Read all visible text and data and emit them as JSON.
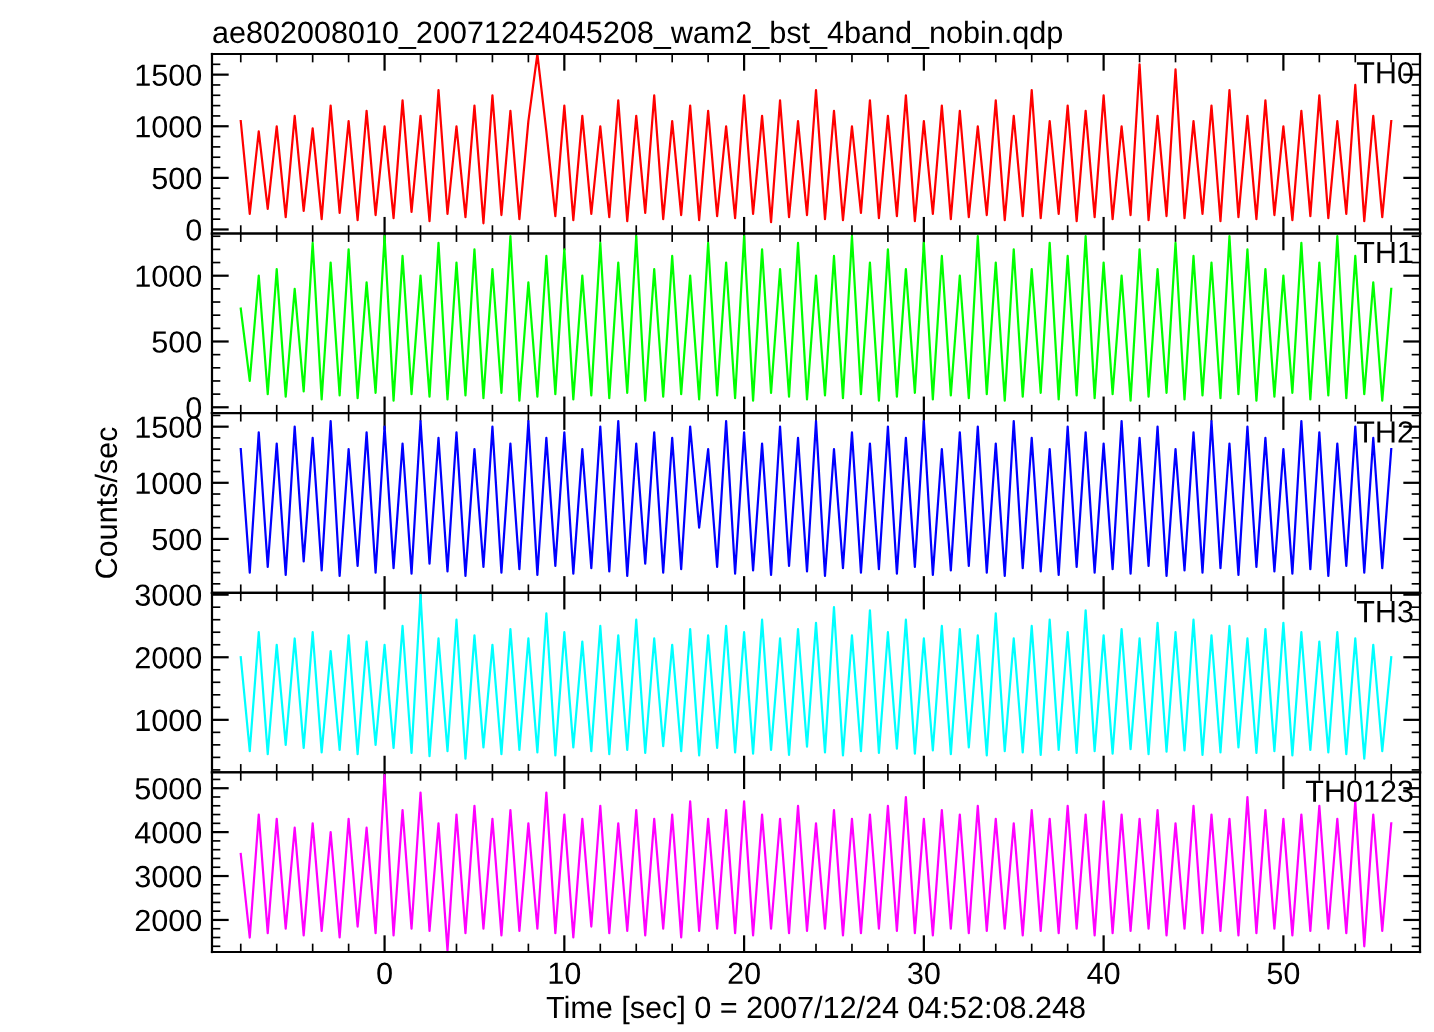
{
  "chart_data": [
    {
      "type": "line",
      "title": "ae802008010_20071224045208_wam2_bst_4band_nobin.qdp",
      "xlim": [
        -9.6,
        57.6
      ],
      "xticks": [
        0,
        10,
        20,
        30,
        40,
        50
      ],
      "ylim": [
        -40,
        1700
      ],
      "yticks": [
        0,
        500,
        1000,
        1500
      ],
      "tick_labels": "y",
      "x": [
        -8,
        -7.5,
        -7,
        -6.5,
        -6,
        -5.5,
        -5,
        -4.5,
        -4,
        -3.5,
        -3,
        -2.5,
        -2,
        -1.5,
        -1,
        -0.5,
        0,
        0.5,
        1,
        1.5,
        2,
        2.5,
        3,
        3.5,
        4,
        4.5,
        5,
        5.5,
        6,
        6.5,
        7,
        7.5,
        8,
        8.5,
        9,
        9.5,
        10,
        10.5,
        11,
        11.5,
        12,
        12.5,
        13,
        13.5,
        14,
        14.5,
        15,
        15.5,
        16,
        16.5,
        17,
        17.5,
        18,
        18.5,
        19,
        19.5,
        20,
        20.5,
        21,
        21.5,
        22,
        22.5,
        23,
        23.5,
        24,
        24.5,
        25,
        25.5,
        26,
        26.5,
        27,
        27.5,
        28,
        28.5,
        29,
        29.5,
        30,
        30.5,
        31,
        31.5,
        32,
        32.5,
        33,
        33.5,
        34,
        34.5,
        35,
        35.5,
        36,
        36.5,
        37,
        37.5,
        38,
        38.5,
        39,
        39.5,
        40,
        40.5,
        41,
        41.5,
        42,
        42.5,
        43,
        43.5,
        44,
        44.5,
        45,
        45.5,
        46,
        46.5,
        47,
        47.5,
        48,
        48.5,
        49,
        49.5,
        50,
        50.5,
        51,
        51.5,
        52,
        52.5,
        53,
        53.5,
        54,
        54.5,
        55,
        55.5,
        56
      ],
      "series": [
        {
          "name": "TH0",
          "color": "#ff0000",
          "values": [
            1050,
            150,
            950,
            200,
            1000,
            120,
            1100,
            180,
            980,
            100,
            1200,
            160,
            1050,
            90,
            1150,
            140,
            1000,
            110,
            1250,
            170,
            1100,
            80,
            1350,
            150,
            1000,
            120,
            1200,
            60,
            1300,
            140,
            1150,
            100,
            1050,
            1700,
            950,
            130,
            1200,
            90,
            1100,
            150,
            1000,
            120,
            1250,
            80,
            1100,
            160,
            1300,
            100,
            1050,
            140,
            1200,
            90,
            1150,
            130,
            1000,
            110,
            1300,
            150,
            1100,
            70,
            1250,
            120,
            1050,
            140,
            1350,
            100,
            1150,
            90,
            1000,
            160,
            1250,
            110,
            1100,
            130,
            1300,
            80,
            1050,
            150,
            1200,
            100,
            1150,
            120,
            1000,
            140,
            1250,
            90,
            1100,
            130,
            1350,
            110,
            1050,
            150,
            1200,
            80,
            1150,
            120,
            1300,
            100,
            1000,
            140,
            1600,
            90,
            1100,
            130,
            1550,
            110,
            1050,
            150,
            1200,
            80,
            1350,
            120,
            1100,
            100,
            1250,
            140,
            1000,
            90,
            1150,
            130,
            1300,
            110,
            1050,
            150,
            1400,
            80,
            1100,
            120,
            1050
          ]
        }
      ]
    },
    {
      "type": "line",
      "xlim": [
        -9.6,
        57.6
      ],
      "xticks": [
        0,
        10,
        20,
        30,
        40,
        50
      ],
      "ylim": [
        -45,
        1320
      ],
      "yticks": [
        0,
        500,
        1000
      ],
      "tick_labels": "y",
      "x": [
        -8,
        -7.5,
        -7,
        -6.5,
        -6,
        -5.5,
        -5,
        -4.5,
        -4,
        -3.5,
        -3,
        -2.5,
        -2,
        -1.5,
        -1,
        -0.5,
        0,
        0.5,
        1,
        1.5,
        2,
        2.5,
        3,
        3.5,
        4,
        4.5,
        5,
        5.5,
        6,
        6.5,
        7,
        7.5,
        8,
        8.5,
        9,
        9.5,
        10,
        10.5,
        11,
        11.5,
        12,
        12.5,
        13,
        13.5,
        14,
        14.5,
        15,
        15.5,
        16,
        16.5,
        17,
        17.5,
        18,
        18.5,
        19,
        19.5,
        20,
        20.5,
        21,
        21.5,
        22,
        22.5,
        23,
        23.5,
        24,
        24.5,
        25,
        25.5,
        26,
        26.5,
        27,
        27.5,
        28,
        28.5,
        29,
        29.5,
        30,
        30.5,
        31,
        31.5,
        32,
        32.5,
        33,
        33.5,
        34,
        34.5,
        35,
        35.5,
        36,
        36.5,
        37,
        37.5,
        38,
        38.5,
        39,
        39.5,
        40,
        40.5,
        41,
        41.5,
        42,
        42.5,
        43,
        43.5,
        44,
        44.5,
        45,
        45.5,
        46,
        46.5,
        47,
        47.5,
        48,
        48.5,
        49,
        49.5,
        50,
        50.5,
        51,
        51.5,
        52,
        52.5,
        53,
        53.5,
        54,
        54.5,
        55,
        55.5,
        56
      ],
      "series": [
        {
          "name": "TH1",
          "color": "#00ff00",
          "values": [
            750,
            200,
            1000,
            100,
            1050,
            80,
            900,
            120,
            1250,
            60,
            1100,
            90,
            1200,
            70,
            950,
            110,
            1300,
            50,
            1150,
            100,
            1000,
            80,
            1250,
            60,
            1100,
            90,
            1200,
            70,
            1050,
            110,
            1300,
            50,
            950,
            80,
            1150,
            100,
            1200,
            60,
            1000,
            90,
            1250,
            70,
            1100,
            110,
            1300,
            50,
            1050,
            80,
            1150,
            100,
            1000,
            60,
            1250,
            90,
            1100,
            70,
            1300,
            50,
            1200,
            110,
            1050,
            80,
            1250,
            60,
            1000,
            90,
            1150,
            70,
            1300,
            100,
            1100,
            50,
            1200,
            80,
            1050,
            110,
            1250,
            60,
            1150,
            90,
            1000,
            70,
            1300,
            100,
            1100,
            50,
            1200,
            80,
            1050,
            110,
            1250,
            60,
            1150,
            90,
            1300,
            70,
            1100,
            100,
            1000,
            50,
            1200,
            80,
            1050,
            110,
            1250,
            60,
            1150,
            90,
            1100,
            70,
            1300,
            100,
            1200,
            50,
            1050,
            80,
            1000,
            110,
            1250,
            60,
            1100,
            90,
            1300,
            70,
            1150,
            100,
            950,
            50,
            900
          ]
        }
      ]
    },
    {
      "type": "line",
      "ylabel": "Counts/sec",
      "xlim": [
        -9.6,
        57.6
      ],
      "xticks": [
        0,
        10,
        20,
        30,
        40,
        50
      ],
      "ylim": [
        20,
        1620
      ],
      "yticks": [
        500,
        1000,
        1500
      ],
      "tick_labels": "y",
      "x": [
        -8,
        -7.5,
        -7,
        -6.5,
        -6,
        -5.5,
        -5,
        -4.5,
        -4,
        -3.5,
        -3,
        -2.5,
        -2,
        -1.5,
        -1,
        -0.5,
        0,
        0.5,
        1,
        1.5,
        2,
        2.5,
        3,
        3.5,
        4,
        4.5,
        5,
        5.5,
        6,
        6.5,
        7,
        7.5,
        8,
        8.5,
        9,
        9.5,
        10,
        10.5,
        11,
        11.5,
        12,
        12.5,
        13,
        13.5,
        14,
        14.5,
        15,
        15.5,
        16,
        16.5,
        17,
        17.5,
        18,
        18.5,
        19,
        19.5,
        20,
        20.5,
        21,
        21.5,
        22,
        22.5,
        23,
        23.5,
        24,
        24.5,
        25,
        25.5,
        26,
        26.5,
        27,
        27.5,
        28,
        28.5,
        29,
        29.5,
        30,
        30.5,
        31,
        31.5,
        32,
        32.5,
        33,
        33.5,
        34,
        34.5,
        35,
        35.5,
        36,
        36.5,
        37,
        37.5,
        38,
        38.5,
        39,
        39.5,
        40,
        40.5,
        41,
        41.5,
        42,
        42.5,
        43,
        43.5,
        44,
        44.5,
        45,
        45.5,
        46,
        46.5,
        47,
        47.5,
        48,
        48.5,
        49,
        49.5,
        50,
        50.5,
        51,
        51.5,
        52,
        52.5,
        53,
        53.5,
        54,
        54.5,
        55,
        55.5,
        56
      ],
      "series": [
        {
          "name": "TH2",
          "color": "#0000ff",
          "values": [
            1300,
            200,
            1450,
            250,
            1350,
            180,
            1500,
            300,
            1400,
            220,
            1550,
            170,
            1300,
            260,
            1450,
            200,
            1500,
            240,
            1350,
            190,
            1550,
            280,
            1400,
            210,
            1450,
            170,
            1300,
            250,
            1500,
            200,
            1350,
            230,
            1550,
            180,
            1400,
            260,
            1450,
            190,
            1300,
            240,
            1500,
            210,
            1550,
            170,
            1350,
            280,
            1450,
            200,
            1400,
            230,
            1500,
            600,
            1300,
            250,
            1550,
            190,
            1450,
            220,
            1350,
            180,
            1500,
            260,
            1400,
            210,
            1550,
            170,
            1300,
            240,
            1450,
            200,
            1350,
            230,
            1500,
            190,
            1400,
            250,
            1550,
            180,
            1300,
            220,
            1450,
            260,
            1500,
            200,
            1350,
            170,
            1550,
            240,
            1400,
            210,
            1300,
            180,
            1500,
            250,
            1450,
            200,
            1350,
            230,
            1550,
            190,
            1400,
            260,
            1500,
            170,
            1300,
            220,
            1450,
            200,
            1550,
            240,
            1350,
            180,
            1500,
            250,
            1400,
            210,
            1300,
            190,
            1550,
            230,
            1450,
            170,
            1350,
            260,
            1500,
            200,
            1400,
            240,
            1300
          ]
        }
      ]
    },
    {
      "type": "line",
      "xlim": [
        -9.6,
        57.6
      ],
      "xticks": [
        0,
        10,
        20,
        30,
        40,
        50
      ],
      "ylim": [
        160,
        3030
      ],
      "yticks": [
        1000,
        2000,
        3000
      ],
      "tick_labels": "y",
      "x": [
        -8,
        -7.5,
        -7,
        -6.5,
        -6,
        -5.5,
        -5,
        -4.5,
        -4,
        -3.5,
        -3,
        -2.5,
        -2,
        -1.5,
        -1,
        -0.5,
        0,
        0.5,
        1,
        1.5,
        2,
        2.5,
        3,
        3.5,
        4,
        4.5,
        5,
        5.5,
        6,
        6.5,
        7,
        7.5,
        8,
        8.5,
        9,
        9.5,
        10,
        10.5,
        11,
        11.5,
        12,
        12.5,
        13,
        13.5,
        14,
        14.5,
        15,
        15.5,
        16,
        16.5,
        17,
        17.5,
        18,
        18.5,
        19,
        19.5,
        20,
        20.5,
        21,
        21.5,
        22,
        22.5,
        23,
        23.5,
        24,
        24.5,
        25,
        25.5,
        26,
        26.5,
        27,
        27.5,
        28,
        28.5,
        29,
        29.5,
        30,
        30.5,
        31,
        31.5,
        32,
        32.5,
        33,
        33.5,
        34,
        34.5,
        35,
        35.5,
        36,
        36.5,
        37,
        37.5,
        38,
        38.5,
        39,
        39.5,
        40,
        40.5,
        41,
        41.5,
        42,
        42.5,
        43,
        43.5,
        44,
        44.5,
        45,
        45.5,
        46,
        46.5,
        47,
        47.5,
        48,
        48.5,
        49,
        49.5,
        50,
        50.5,
        51,
        51.5,
        52,
        52.5,
        53,
        53.5,
        54,
        54.5,
        55,
        55.5,
        56
      ],
      "series": [
        {
          "name": "TH3",
          "color": "#00ffff",
          "values": [
            2000,
            500,
            2400,
            450,
            2200,
            600,
            2300,
            550,
            2400,
            480,
            2100,
            520,
            2350,
            450,
            2250,
            600,
            2200,
            550,
            2500,
            470,
            3000,
            420,
            2300,
            500,
            2600,
            380,
            2350,
            560,
            2200,
            450,
            2450,
            520,
            2300,
            480,
            2700,
            430,
            2400,
            560,
            2250,
            500,
            2500,
            450,
            2350,
            520,
            2600,
            470,
            2300,
            580,
            2200,
            500,
            2450,
            430,
            2350,
            550,
            2500,
            480,
            2400,
            460,
            2600,
            520,
            2300,
            440,
            2450,
            570,
            2550,
            480,
            2800,
            430,
            2350,
            500,
            2750,
            470,
            2400,
            540,
            2600,
            460,
            2300,
            510,
            2500,
            450,
            2450,
            560,
            2350,
            430,
            2700,
            500,
            2300,
            480,
            2500,
            440,
            2600,
            520,
            2400,
            470,
            2750,
            500,
            2350,
            460,
            2450,
            530,
            2300,
            450,
            2550,
            490,
            2400,
            510,
            2600,
            440,
            2350,
            480,
            2500,
            560,
            2300,
            470,
            2450,
            500,
            2550,
            430,
            2400,
            520,
            2250,
            480,
            2400,
            450,
            2300,
            380,
            2200,
            500,
            2000
          ]
        }
      ]
    },
    {
      "type": "line",
      "xlabel": "Time [sec] 0 = 2007/12/24 04:52:08.248",
      "xlim": [
        -9.6,
        57.6
      ],
      "xticks": [
        0,
        10,
        20,
        30,
        40,
        50
      ],
      "ylim": [
        1270,
        5360
      ],
      "yticks": [
        2000,
        3000,
        4000,
        5000
      ],
      "x": [
        -8,
        -7.5,
        -7,
        -6.5,
        -6,
        -5.5,
        -5,
        -4.5,
        -4,
        -3.5,
        -3,
        -2.5,
        -2,
        -1.5,
        -1,
        -0.5,
        0,
        0.5,
        1,
        1.5,
        2,
        2.5,
        3,
        3.5,
        4,
        4.5,
        5,
        5.5,
        6,
        6.5,
        7,
        7.5,
        8,
        8.5,
        9,
        9.5,
        10,
        10.5,
        11,
        11.5,
        12,
        12.5,
        13,
        13.5,
        14,
        14.5,
        15,
        15.5,
        16,
        16.5,
        17,
        17.5,
        18,
        18.5,
        19,
        19.5,
        20,
        20.5,
        21,
        21.5,
        22,
        22.5,
        23,
        23.5,
        24,
        24.5,
        25,
        25.5,
        26,
        26.5,
        27,
        27.5,
        28,
        28.5,
        29,
        29.5,
        30,
        30.5,
        31,
        31.5,
        32,
        32.5,
        33,
        33.5,
        34,
        34.5,
        35,
        35.5,
        36,
        36.5,
        37,
        37.5,
        38,
        38.5,
        39,
        39.5,
        40,
        40.5,
        41,
        41.5,
        42,
        42.5,
        43,
        43.5,
        44,
        44.5,
        45,
        45.5,
        46,
        46.5,
        47,
        47.5,
        48,
        48.5,
        49,
        49.5,
        50,
        50.5,
        51,
        51.5,
        52,
        52.5,
        53,
        53.5,
        54,
        54.5,
        55,
        55.5,
        56
      ],
      "series": [
        {
          "name": "TH0123",
          "color": "#ff00ff",
          "values": [
            3500,
            1600,
            4400,
            1700,
            4300,
            1800,
            4100,
            1650,
            4200,
            1750,
            4000,
            1600,
            4300,
            1850,
            4100,
            1700,
            5300,
            1650,
            4500,
            1800,
            4900,
            1750,
            4200,
            1300,
            4400,
            1700,
            4600,
            1800,
            4300,
            1650,
            4500,
            1750,
            4200,
            1800,
            4900,
            1700,
            4400,
            1600,
            4300,
            1850,
            4600,
            1700,
            4200,
            1750,
            4500,
            1650,
            4300,
            1800,
            4400,
            1600,
            4700,
            1750,
            4300,
            1800,
            4500,
            1700,
            4700,
            1650,
            4400,
            1800,
            4300,
            1700,
            4600,
            1750,
            4200,
            1800,
            4500,
            1650,
            4300,
            1700,
            4400,
            1800,
            4600,
            1750,
            4800,
            1700,
            4300,
            1650,
            4500,
            1800,
            4400,
            1700,
            4600,
            1750,
            4300,
            1800,
            4200,
            1650,
            4500,
            1750,
            4300,
            1700,
            4600,
            1800,
            4400,
            1650,
            4700,
            1700,
            4400,
            1750,
            4300,
            1800,
            4500,
            1650,
            4200,
            1800,
            4600,
            1700,
            4400,
            1750,
            4300,
            1650,
            4800,
            1700,
            4500,
            1800,
            4300,
            1650,
            4400,
            1750,
            4600,
            1800,
            4300,
            1700,
            4700,
            1400,
            4400,
            1750,
            4200
          ]
        }
      ]
    }
  ]
}
